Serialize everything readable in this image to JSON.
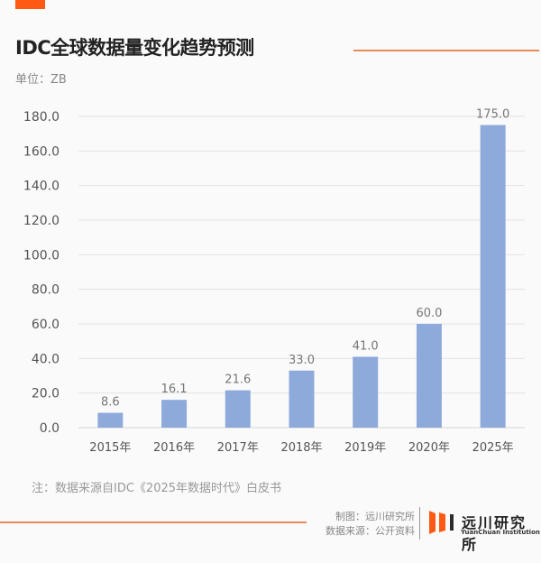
{
  "header": {
    "title": "IDC全球数据量变化趋势预测",
    "unit": "单位：ZB"
  },
  "colors": {
    "accent": "#ff5a14",
    "rule": "#e88a5a",
    "bar": "#8eaadb",
    "grid": "#e3e3e3",
    "logo_dark": "#2b2b2b"
  },
  "chart_data": {
    "type": "bar",
    "title": "IDC全球数据量变化趋势预测",
    "xlabel": "",
    "ylabel": "单位：ZB",
    "categories": [
      "2015年",
      "2016年",
      "2017年",
      "2018年",
      "2019年",
      "2020年",
      "2025年"
    ],
    "values": [
      8.6,
      16.1,
      21.6,
      33.0,
      41.0,
      60.0,
      175.0
    ],
    "value_labels": [
      "8.6",
      "16.1",
      "21.6",
      "33.0",
      "41.0",
      "60.0",
      "175.0"
    ],
    "ylim": [
      0,
      180
    ],
    "yticks": [
      0,
      20,
      40,
      60,
      80,
      100,
      120,
      140,
      160,
      180
    ],
    "ytick_labels": [
      "0.0",
      "20.0",
      "40.0",
      "60.0",
      "80.0",
      "100.0",
      "120.0",
      "140.0",
      "160.0",
      "180.0"
    ],
    "grid": true,
    "legend": "none"
  },
  "footer": {
    "note": "注：数据来源自IDC《2025年数据时代》白皮书",
    "made_by": "制图：远川研究所",
    "source": "数据来源：公开资料",
    "logo_cn": "远川研究所",
    "logo_en": "YuanChuan Institution"
  }
}
